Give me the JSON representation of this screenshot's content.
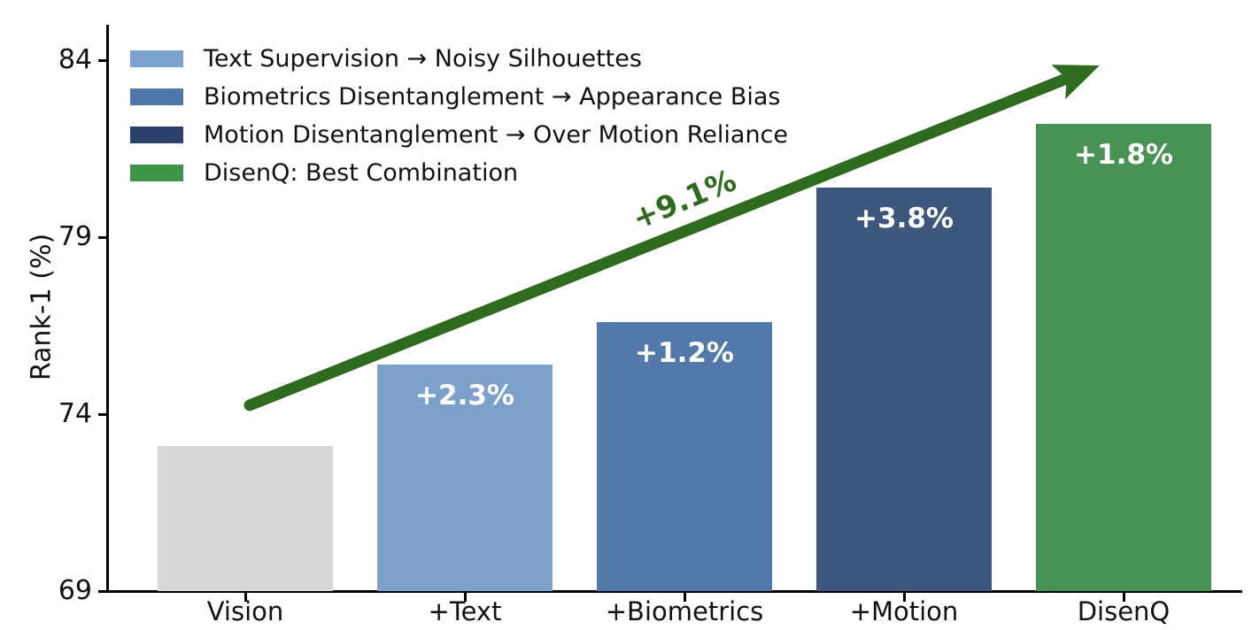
{
  "chart_data": {
    "type": "bar",
    "title": "",
    "xlabel": "",
    "ylabel": "Rank-1 (%)",
    "ylim": [
      69,
      85
    ],
    "yticks": [
      69,
      74,
      79,
      84
    ],
    "grid": false,
    "categories": [
      "Vision",
      "+Text",
      "+Biometrics",
      "+Motion",
      "DisenQ"
    ],
    "values": [
      73.1,
      75.4,
      76.6,
      80.4,
      82.2
    ],
    "bar_labels": [
      "",
      "+2.3%",
      "+1.2%",
      "+3.8%",
      "+1.8%"
    ],
    "bar_colors": [
      "#d8d8d8",
      "#7ba0ca",
      "#5378aa",
      "#3e577c",
      "#479254"
    ],
    "bar_label_color": "#ffffff",
    "legend": {
      "position": "upper-left",
      "entries": [
        {
          "label": "Text Supervision → Noisy Silhouettes",
          "color": "#7ba2cc"
        },
        {
          "label": "Biometrics Disentanglement → Appearance Bias",
          "color": "#4f76a9"
        },
        {
          "label": "Motion Disentanglement → Over Motion Reliance",
          "color": "#2a416b"
        },
        {
          "label": "DisenQ: Best Combination",
          "color": "#3e9447"
        }
      ]
    },
    "annotation": {
      "text": "+9.1%",
      "color": "#2e6b1e",
      "rotation_deg": -22.5,
      "label_pos": {
        "x": 2.0,
        "y": 80.05
      },
      "arrow": {
        "color": "#2e6b1e",
        "from": {
          "x": 0.02,
          "y": 74.25
        },
        "to": {
          "x": 3.89,
          "y": 83.85
        }
      }
    }
  }
}
